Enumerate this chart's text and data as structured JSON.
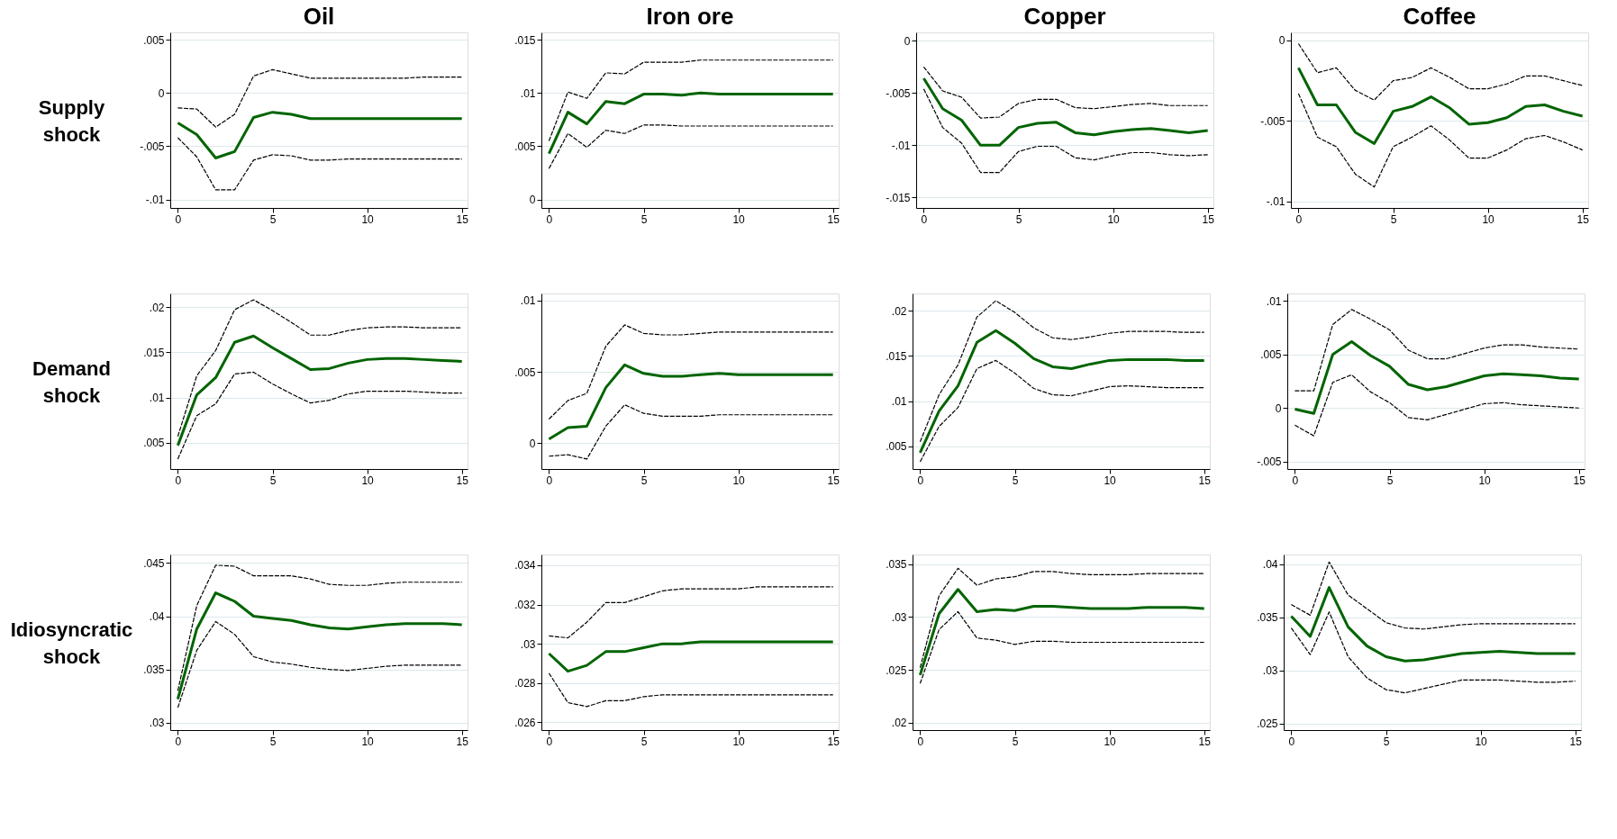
{
  "chart_data": [
    {
      "type": "line",
      "title": "Oil",
      "ylabel": "Supply shock",
      "x": [
        0,
        1,
        2,
        3,
        4,
        5,
        6,
        7,
        8,
        9,
        10,
        11,
        12,
        13,
        14,
        15
      ],
      "xlim": [
        -0.4,
        15.3
      ],
      "ylim": [
        -0.0108,
        0.0057
      ],
      "xticks": [
        0,
        5,
        10,
        15
      ],
      "yticks": [
        {
          "value": 0.005,
          "label": ".005"
        },
        0,
        {
          "value": -0.005,
          "label": "-.005"
        },
        {
          "value": -0.01,
          "label": "-.01"
        }
      ],
      "grid": "y",
      "series": [
        {
          "color": "#006400",
          "values": [
            -0.0028,
            -0.0039,
            -0.0061,
            -0.0055,
            -0.0023,
            -0.0018,
            -0.002,
            -0.0024,
            -0.0024,
            -0.0024,
            -0.0024,
            -0.0024,
            -0.0024,
            -0.0024,
            -0.0024,
            -0.0024
          ]
        },
        {
          "color": "#000000",
          "line_style": "dashed",
          "values": [
            -0.0014,
            -0.0015,
            -0.0032,
            -0.002,
            0.0016,
            0.0022,
            0.0018,
            0.0014,
            0.0014,
            0.0014,
            0.0014,
            0.0014,
            0.0014,
            0.0015,
            0.0015,
            0.0015
          ]
        },
        {
          "color": "#000000",
          "line_style": "dashed",
          "values": [
            -0.0042,
            -0.006,
            -0.0091,
            -0.0091,
            -0.0063,
            -0.0058,
            -0.0059,
            -0.0063,
            -0.0063,
            -0.0062,
            -0.0062,
            -0.0062,
            -0.0062,
            -0.0062,
            -0.0062,
            -0.0062
          ]
        }
      ]
    },
    {
      "type": "line",
      "title": "Iron ore",
      "x": [
        0,
        1,
        2,
        3,
        4,
        5,
        6,
        7,
        8,
        9,
        10,
        11,
        12,
        13,
        14,
        15
      ],
      "xlim": [
        -0.4,
        15.3
      ],
      "ylim": [
        -0.0008,
        0.0157
      ],
      "xticks": [
        0,
        5,
        10,
        15
      ],
      "yticks": [
        0,
        {
          "value": 0.005,
          "label": ".005"
        },
        {
          "value": 0.01,
          "label": ".01"
        },
        {
          "value": 0.015,
          "label": ".015"
        }
      ],
      "grid": "y",
      "series": [
        {
          "color": "#006400",
          "values": [
            0.0043,
            0.0082,
            0.0071,
            0.0092,
            0.009,
            0.0099,
            0.0099,
            0.0098,
            0.01,
            0.0099,
            0.0099,
            0.0099,
            0.0099,
            0.0099,
            0.0099,
            0.0099
          ]
        },
        {
          "color": "#000000",
          "line_style": "dashed",
          "values": [
            0.0055,
            0.0101,
            0.0095,
            0.0119,
            0.0118,
            0.0129,
            0.0129,
            0.0129,
            0.0131,
            0.0131,
            0.0131,
            0.0131,
            0.0131,
            0.0131,
            0.0131,
            0.0131
          ]
        },
        {
          "color": "#000000",
          "line_style": "dashed",
          "values": [
            0.0029,
            0.0062,
            0.0049,
            0.0065,
            0.0062,
            0.007,
            0.007,
            0.0069,
            0.0069,
            0.0069,
            0.0069,
            0.0069,
            0.0069,
            0.0069,
            0.0069,
            0.0069
          ]
        }
      ]
    },
    {
      "type": "line",
      "title": "Copper",
      "x": [
        0,
        1,
        2,
        3,
        4,
        5,
        6,
        7,
        8,
        9,
        10,
        11,
        12,
        13,
        14,
        15
      ],
      "xlim": [
        -0.4,
        15.3
      ],
      "ylim": [
        -0.016,
        0.0008
      ],
      "xticks": [
        0,
        5,
        10,
        15
      ],
      "yticks": [
        0,
        {
          "value": -0.005,
          "label": "-.005"
        },
        {
          "value": -0.01,
          "label": "-.01"
        },
        {
          "value": -0.015,
          "label": "-.015"
        }
      ],
      "grid": "y",
      "series": [
        {
          "color": "#006400",
          "values": [
            -0.0036,
            -0.0065,
            -0.0076,
            -0.01,
            -0.01,
            -0.0083,
            -0.0079,
            -0.0078,
            -0.0088,
            -0.009,
            -0.0087,
            -0.0085,
            -0.0084,
            -0.0086,
            -0.0088,
            -0.0086
          ]
        },
        {
          "color": "#000000",
          "line_style": "dashed",
          "values": [
            -0.0025,
            -0.0048,
            -0.0054,
            -0.0074,
            -0.0073,
            -0.006,
            -0.0056,
            -0.0056,
            -0.0064,
            -0.0065,
            -0.0063,
            -0.0061,
            -0.006,
            -0.0062,
            -0.0062,
            -0.0062
          ]
        },
        {
          "color": "#000000",
          "line_style": "dashed",
          "values": [
            -0.0046,
            -0.0083,
            -0.0098,
            -0.0126,
            -0.0126,
            -0.0106,
            -0.0101,
            -0.0101,
            -0.0112,
            -0.0114,
            -0.011,
            -0.0107,
            -0.0107,
            -0.0109,
            -0.011,
            -0.0109
          ]
        }
      ]
    },
    {
      "type": "line",
      "title": "Coffee",
      "x": [
        0,
        1,
        2,
        3,
        4,
        5,
        6,
        7,
        8,
        9,
        10,
        11,
        12,
        13,
        14,
        15
      ],
      "xlim": [
        -0.4,
        15.3
      ],
      "ylim": [
        -0.0104,
        0.0005
      ],
      "xticks": [
        0,
        5,
        10,
        15
      ],
      "yticks": [
        0,
        {
          "value": -0.005,
          "label": "-.005"
        },
        {
          "value": -0.01,
          "label": "-.01"
        }
      ],
      "grid": "y",
      "series": [
        {
          "color": "#006400",
          "values": [
            -0.0017,
            -0.004,
            -0.004,
            -0.0057,
            -0.0064,
            -0.0044,
            -0.0041,
            -0.0035,
            -0.0042,
            -0.0052,
            -0.0051,
            -0.0048,
            -0.0041,
            -0.004,
            -0.0044,
            -0.0047
          ]
        },
        {
          "color": "#000000",
          "line_style": "dashed",
          "values": [
            -0.0002,
            -0.002,
            -0.0017,
            -0.0031,
            -0.0037,
            -0.0025,
            -0.0023,
            -0.0017,
            -0.0023,
            -0.003,
            -0.003,
            -0.0027,
            -0.0022,
            -0.0022,
            -0.0025,
            -0.0028
          ]
        },
        {
          "color": "#000000",
          "line_style": "dashed",
          "values": [
            -0.0033,
            -0.006,
            -0.0066,
            -0.0083,
            -0.0091,
            -0.0066,
            -0.006,
            -0.0053,
            -0.0062,
            -0.0073,
            -0.0073,
            -0.0068,
            -0.0061,
            -0.0059,
            -0.0063,
            -0.0068
          ]
        }
      ]
    },
    {
      "type": "line",
      "ylabel": "Demand shock",
      "x": [
        0,
        1,
        2,
        3,
        4,
        5,
        6,
        7,
        8,
        9,
        10,
        11,
        12,
        13,
        14,
        15
      ],
      "xlim": [
        -0.4,
        15.3
      ],
      "ylim": [
        0.0021,
        0.0215
      ],
      "xticks": [
        0,
        5,
        10,
        15
      ],
      "yticks": [
        {
          "value": 0.005,
          "label": ".005"
        },
        {
          "value": 0.01,
          "label": ".01"
        },
        {
          "value": 0.015,
          "label": ".015"
        },
        {
          "value": 0.02,
          "label": ".02"
        }
      ],
      "grid": "y",
      "series": [
        {
          "color": "#006400",
          "values": [
            0.0047,
            0.0103,
            0.0122,
            0.0161,
            0.0168,
            0.0155,
            0.0143,
            0.0131,
            0.0132,
            0.0138,
            0.0142,
            0.0143,
            0.0143,
            0.0142,
            0.0141,
            0.014
          ]
        },
        {
          "color": "#000000",
          "line_style": "dashed",
          "values": [
            0.0057,
            0.0124,
            0.0152,
            0.0197,
            0.0208,
            0.0196,
            0.0183,
            0.0169,
            0.0169,
            0.0174,
            0.0177,
            0.0178,
            0.0178,
            0.0177,
            0.0177,
            0.0177
          ]
        },
        {
          "color": "#000000",
          "line_style": "dashed",
          "values": [
            0.0032,
            0.008,
            0.0093,
            0.0126,
            0.0128,
            0.0115,
            0.0104,
            0.0094,
            0.0097,
            0.0104,
            0.0107,
            0.0107,
            0.0107,
            0.0106,
            0.0105,
            0.0105
          ]
        }
      ]
    },
    {
      "type": "line",
      "x": [
        0,
        1,
        2,
        3,
        4,
        5,
        6,
        7,
        8,
        9,
        10,
        11,
        12,
        13,
        14,
        15
      ],
      "xlim": [
        -0.4,
        15.3
      ],
      "ylim": [
        -0.0018,
        0.0105
      ],
      "xticks": [
        0,
        5,
        10,
        15
      ],
      "yticks": [
        0,
        {
          "value": 0.005,
          "label": ".005"
        },
        {
          "value": 0.01,
          "label": ".01"
        }
      ],
      "grid": "y",
      "series": [
        {
          "color": "#006400",
          "values": [
            0.0003,
            0.0011,
            0.0012,
            0.0039,
            0.0055,
            0.0049,
            0.0047,
            0.0047,
            0.0048,
            0.0049,
            0.0048,
            0.0048,
            0.0048,
            0.0048,
            0.0048,
            0.0048
          ]
        },
        {
          "color": "#000000",
          "line_style": "dashed",
          "values": [
            0.0017,
            0.003,
            0.0035,
            0.0068,
            0.0083,
            0.0077,
            0.0076,
            0.0076,
            0.0077,
            0.0078,
            0.0078,
            0.0078,
            0.0078,
            0.0078,
            0.0078,
            0.0078
          ]
        },
        {
          "color": "#000000",
          "line_style": "dashed",
          "values": [
            -0.0009,
            -0.0008,
            -0.0011,
            0.0012,
            0.0027,
            0.0021,
            0.0019,
            0.0019,
            0.0019,
            0.002,
            0.002,
            0.002,
            0.002,
            0.002,
            0.002,
            0.002
          ]
        }
      ]
    },
    {
      "type": "line",
      "x": [
        0,
        1,
        2,
        3,
        4,
        5,
        6,
        7,
        8,
        9,
        10,
        11,
        12,
        13,
        14,
        15
      ],
      "xlim": [
        -0.4,
        15.3
      ],
      "ylim": [
        0.0025,
        0.0219
      ],
      "xticks": [
        0,
        5,
        10,
        15
      ],
      "yticks": [
        {
          "value": 0.005,
          "label": ".005"
        },
        {
          "value": 0.01,
          "label": ".01"
        },
        {
          "value": 0.015,
          "label": ".015"
        },
        {
          "value": 0.02,
          "label": ".02"
        }
      ],
      "grid": "y",
      "series": [
        {
          "color": "#006400",
          "values": [
            0.0043,
            0.0089,
            0.0117,
            0.0165,
            0.0178,
            0.0164,
            0.0147,
            0.0138,
            0.0136,
            0.0141,
            0.0145,
            0.0146,
            0.0146,
            0.0146,
            0.0145,
            0.0145
          ]
        },
        {
          "color": "#000000",
          "line_style": "dashed",
          "values": [
            0.0055,
            0.0107,
            0.014,
            0.0193,
            0.0211,
            0.0198,
            0.0181,
            0.017,
            0.0168,
            0.0171,
            0.0175,
            0.0177,
            0.0177,
            0.0177,
            0.0176,
            0.0176
          ]
        },
        {
          "color": "#000000",
          "line_style": "dashed",
          "values": [
            0.0033,
            0.0072,
            0.0093,
            0.0136,
            0.0145,
            0.0131,
            0.0114,
            0.0107,
            0.0106,
            0.0111,
            0.0116,
            0.0117,
            0.0116,
            0.0115,
            0.0115,
            0.0115
          ]
        }
      ]
    },
    {
      "type": "line",
      "x": [
        0,
        1,
        2,
        3,
        4,
        5,
        6,
        7,
        8,
        9,
        10,
        11,
        12,
        13,
        14,
        15
      ],
      "xlim": [
        -0.4,
        15.3
      ],
      "ylim": [
        -0.0057,
        0.0107
      ],
      "xticks": [
        0,
        5,
        10,
        15
      ],
      "yticks": [
        {
          "value": -0.005,
          "label": "-.005"
        },
        0,
        {
          "value": 0.005,
          "label": ".005"
        },
        {
          "value": 0.01,
          "label": ".01"
        }
      ],
      "grid": "y",
      "series": [
        {
          "color": "#006400",
          "values": [
            -0.0001,
            -0.0005,
            0.005,
            0.0062,
            0.0049,
            0.0039,
            0.0022,
            0.0017,
            0.002,
            0.0025,
            0.003,
            0.0032,
            0.0031,
            0.003,
            0.0028,
            0.0027
          ]
        },
        {
          "color": "#000000",
          "line_style": "dashed",
          "values": [
            0.0016,
            0.0016,
            0.0078,
            0.0092,
            0.0083,
            0.0073,
            0.0054,
            0.0046,
            0.0046,
            0.0051,
            0.0056,
            0.0059,
            0.0059,
            0.0057,
            0.0056,
            0.0055
          ]
        },
        {
          "color": "#000000",
          "line_style": "dashed",
          "values": [
            -0.0016,
            -0.0026,
            0.0024,
            0.0031,
            0.0015,
            0.0005,
            -0.0009,
            -0.0011,
            -0.0006,
            -0.0001,
            0.0004,
            0.0005,
            0.0003,
            0.0002,
            0.0001,
            0.0
          ]
        }
      ]
    },
    {
      "type": "line",
      "ylabel": "Idiosyncratic shock",
      "x": [
        0,
        1,
        2,
        3,
        4,
        5,
        6,
        7,
        8,
        9,
        10,
        11,
        12,
        13,
        14,
        15
      ],
      "xlim": [
        -0.4,
        15.3
      ],
      "ylim": [
        0.0293,
        0.0458
      ],
      "xticks": [
        0,
        5,
        10,
        15
      ],
      "yticks": [
        {
          "value": 0.03,
          "label": ".03"
        },
        {
          "value": 0.035,
          "label": ".035"
        },
        {
          "value": 0.04,
          "label": ".04"
        },
        {
          "value": 0.045,
          "label": ".045"
        }
      ],
      "grid": "y",
      "series": [
        {
          "color": "#006400",
          "values": [
            0.0322,
            0.0388,
            0.0422,
            0.0414,
            0.04,
            0.0398,
            0.0396,
            0.0392,
            0.0389,
            0.0388,
            0.039,
            0.0392,
            0.0393,
            0.0393,
            0.0393,
            0.0392
          ]
        },
        {
          "color": "#000000",
          "line_style": "dashed",
          "values": [
            0.033,
            0.041,
            0.0448,
            0.0447,
            0.0438,
            0.0438,
            0.0438,
            0.0435,
            0.043,
            0.0429,
            0.0429,
            0.0431,
            0.0432,
            0.0432,
            0.0432,
            0.0432
          ]
        },
        {
          "color": "#000000",
          "line_style": "dashed",
          "values": [
            0.0314,
            0.0368,
            0.0395,
            0.0383,
            0.0362,
            0.0357,
            0.0355,
            0.0352,
            0.035,
            0.0349,
            0.0351,
            0.0353,
            0.0354,
            0.0354,
            0.0354,
            0.0354
          ]
        }
      ]
    },
    {
      "type": "line",
      "x": [
        0,
        1,
        2,
        3,
        4,
        5,
        6,
        7,
        8,
        9,
        10,
        11,
        12,
        13,
        14,
        15
      ],
      "xlim": [
        -0.4,
        15.3
      ],
      "ylim": [
        0.0256,
        0.03455
      ],
      "xticks": [
        0,
        5,
        10,
        15
      ],
      "yticks": [
        {
          "value": 0.026,
          "label": ".026"
        },
        {
          "value": 0.028,
          "label": ".028"
        },
        {
          "value": 0.03,
          "label": ".03"
        },
        {
          "value": 0.032,
          "label": ".032"
        },
        {
          "value": 0.034,
          "label": ".034"
        }
      ],
      "grid": "y",
      "series": [
        {
          "color": "#006400",
          "values": [
            0.0295,
            0.0286,
            0.0289,
            0.0296,
            0.0296,
            0.0298,
            0.03,
            0.03,
            0.0301,
            0.0301,
            0.0301,
            0.0301,
            0.0301,
            0.0301,
            0.0301,
            0.0301
          ]
        },
        {
          "color": "#000000",
          "line_style": "dashed",
          "values": [
            0.0304,
            0.0303,
            0.0311,
            0.0321,
            0.0321,
            0.0324,
            0.0327,
            0.0328,
            0.0328,
            0.0328,
            0.0328,
            0.0329,
            0.0329,
            0.0329,
            0.0329,
            0.0329
          ]
        },
        {
          "color": "#000000",
          "line_style": "dashed",
          "values": [
            0.0285,
            0.027,
            0.0268,
            0.0271,
            0.0271,
            0.0273,
            0.0274,
            0.0274,
            0.0274,
            0.0274,
            0.0274,
            0.0274,
            0.0274,
            0.0274,
            0.0274,
            0.0274
          ]
        }
      ]
    },
    {
      "type": "line",
      "x": [
        0,
        1,
        2,
        3,
        4,
        5,
        6,
        7,
        8,
        9,
        10,
        11,
        12,
        13,
        14,
        15
      ],
      "xlim": [
        -0.4,
        15.3
      ],
      "ylim": [
        0.0193,
        0.0359
      ],
      "xticks": [
        0,
        5,
        10,
        15
      ],
      "yticks": [
        {
          "value": 0.02,
          "label": ".02"
        },
        {
          "value": 0.025,
          "label": ".025"
        },
        {
          "value": 0.03,
          "label": ".03"
        },
        {
          "value": 0.035,
          "label": ".035"
        }
      ],
      "grid": "y",
      "series": [
        {
          "color": "#006400",
          "values": [
            0.0245,
            0.0303,
            0.0326,
            0.0305,
            0.0307,
            0.0306,
            0.031,
            0.031,
            0.0309,
            0.0308,
            0.0308,
            0.0308,
            0.0309,
            0.0309,
            0.0309,
            0.0308
          ]
        },
        {
          "color": "#000000",
          "line_style": "dashed",
          "values": [
            0.0252,
            0.032,
            0.0346,
            0.033,
            0.0336,
            0.0338,
            0.0343,
            0.0343,
            0.0341,
            0.034,
            0.034,
            0.034,
            0.0341,
            0.0341,
            0.0341,
            0.0341
          ]
        },
        {
          "color": "#000000",
          "line_style": "dashed",
          "values": [
            0.0237,
            0.0288,
            0.0305,
            0.028,
            0.0278,
            0.0274,
            0.0277,
            0.0277,
            0.0276,
            0.0276,
            0.0276,
            0.0276,
            0.0276,
            0.0276,
            0.0276,
            0.0276
          ]
        }
      ]
    },
    {
      "type": "line",
      "x": [
        0,
        1,
        2,
        3,
        4,
        5,
        6,
        7,
        8,
        9,
        10,
        11,
        12,
        13,
        14,
        15
      ],
      "xlim": [
        -0.4,
        15.3
      ],
      "ylim": [
        0.0244,
        0.0409
      ],
      "xticks": [
        0,
        5,
        10,
        15
      ],
      "yticks": [
        {
          "value": 0.025,
          "label": ".025"
        },
        {
          "value": 0.03,
          "label": ".03"
        },
        {
          "value": 0.035,
          "label": ".035"
        },
        {
          "value": 0.04,
          "label": ".04"
        }
      ],
      "grid": "y",
      "series": [
        {
          "color": "#006400",
          "values": [
            0.0351,
            0.0332,
            0.0378,
            0.0341,
            0.0323,
            0.0313,
            0.0309,
            0.031,
            0.0313,
            0.0316,
            0.0317,
            0.0318,
            0.0317,
            0.0316,
            0.0316,
            0.0316
          ]
        },
        {
          "color": "#000000",
          "line_style": "dashed",
          "values": [
            0.0362,
            0.0352,
            0.0402,
            0.0371,
            0.0358,
            0.0345,
            0.034,
            0.0339,
            0.0341,
            0.0343,
            0.0344,
            0.0344,
            0.0344,
            0.0344,
            0.0344,
            0.0344
          ]
        },
        {
          "color": "#000000",
          "line_style": "dashed",
          "values": [
            0.034,
            0.0315,
            0.0355,
            0.0313,
            0.0293,
            0.0282,
            0.0279,
            0.0283,
            0.0287,
            0.0291,
            0.0291,
            0.0291,
            0.029,
            0.0289,
            0.0289,
            0.029
          ]
        }
      ]
    }
  ]
}
